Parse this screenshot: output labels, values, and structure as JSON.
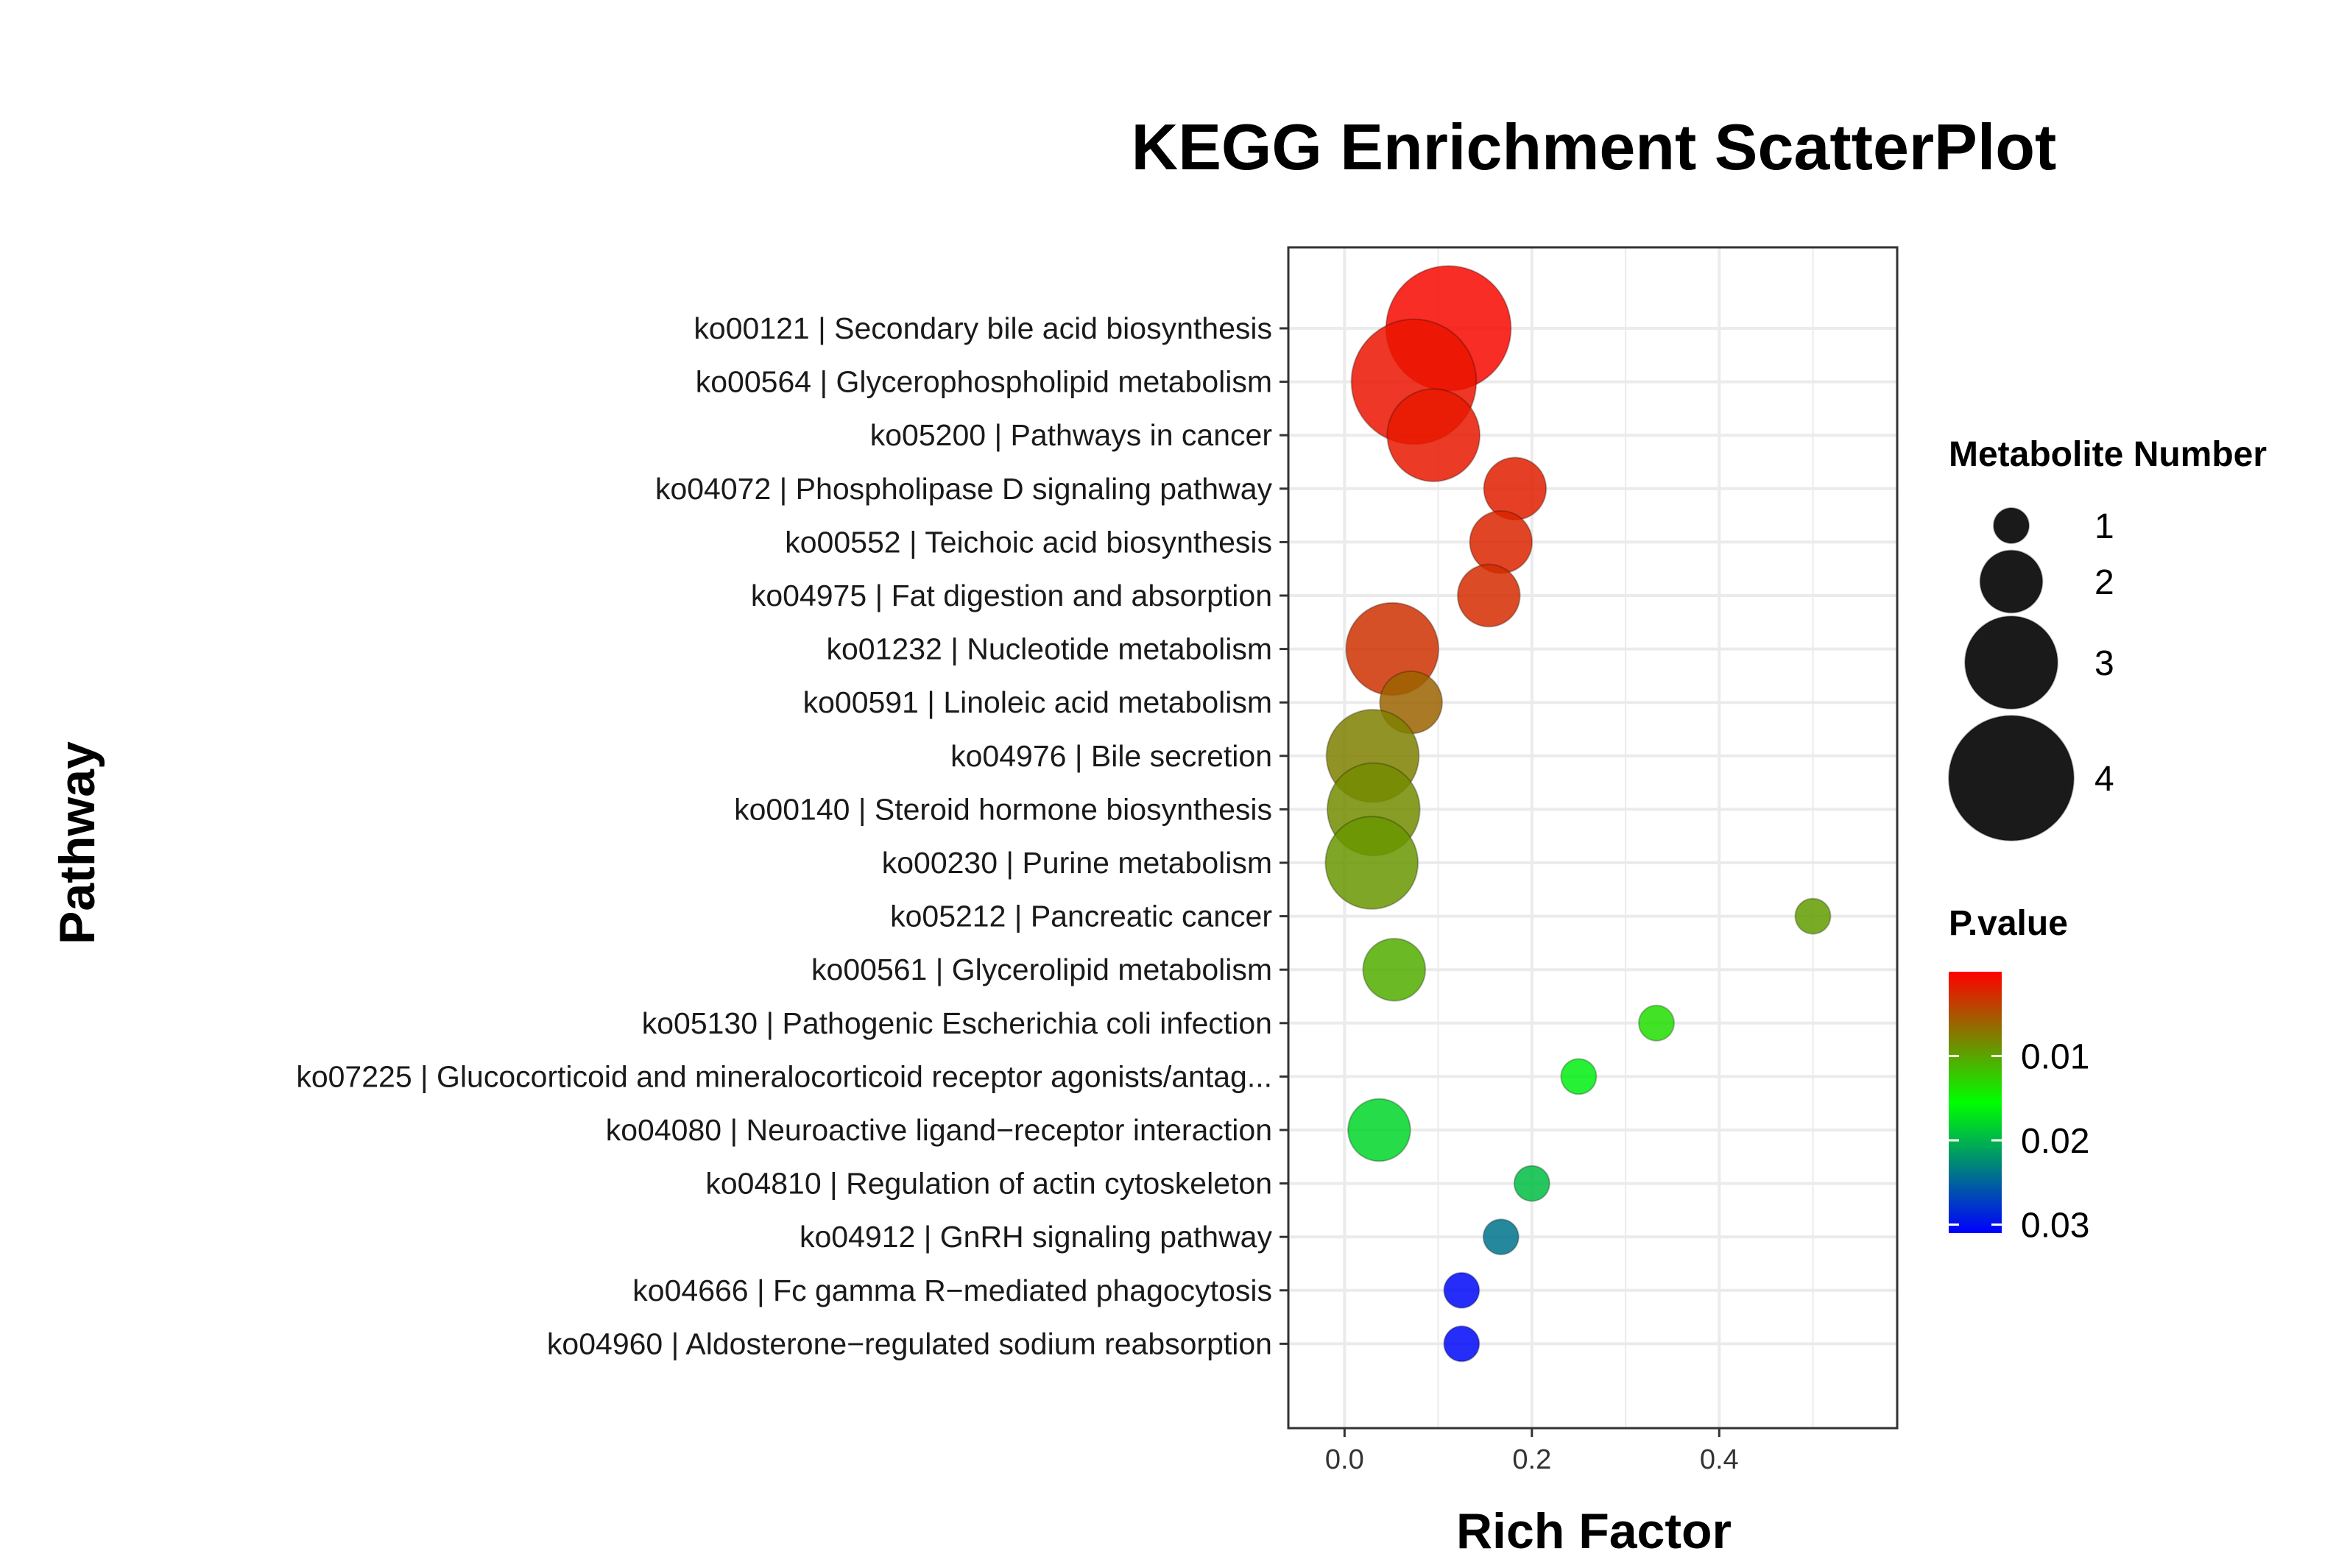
{
  "chart_data": {
    "type": "scatter",
    "title": "KEGG Enrichment ScatterPlot",
    "xlabel": "Rich Factor",
    "ylabel": "Pathway",
    "xlim": [
      -0.06,
      0.59
    ],
    "xticks": [
      0.0,
      0.2,
      0.4
    ],
    "xtick_labels": [
      "0.0",
      "0.2",
      "0.4"
    ],
    "grid": true,
    "points": [
      {
        "pathway": "ko00121 | Secondary bile acid biosynthesis",
        "rich_factor": 0.111,
        "metabolite_number": 4,
        "p_value": 0.0005
      },
      {
        "pathway": "ko00564 | Glycerophospholipid metabolism",
        "rich_factor": 0.074,
        "metabolite_number": 4,
        "p_value": 0.0012
      },
      {
        "pathway": "ko05200 | Pathways in cancer",
        "rich_factor": 0.095,
        "metabolite_number": 3,
        "p_value": 0.0014
      },
      {
        "pathway": "ko04072 | Phospholipase D signaling pathway",
        "rich_factor": 0.182,
        "metabolite_number": 2,
        "p_value": 0.0018
      },
      {
        "pathway": "ko00552 | Teichoic acid biosynthesis",
        "rich_factor": 0.167,
        "metabolite_number": 2,
        "p_value": 0.0022
      },
      {
        "pathway": "ko04975 | Fat digestion and absorption",
        "rich_factor": 0.154,
        "metabolite_number": 2,
        "p_value": 0.0026
      },
      {
        "pathway": "ko01232 | Nucleotide metabolism",
        "rich_factor": 0.051,
        "metabolite_number": 3,
        "p_value": 0.003
      },
      {
        "pathway": "ko00591 | Linoleic acid metabolism",
        "rich_factor": 0.071,
        "metabolite_number": 2,
        "p_value": 0.006
      },
      {
        "pathway": "ko04976 | Bile secretion",
        "rich_factor": 0.03,
        "metabolite_number": 3,
        "p_value": 0.0078
      },
      {
        "pathway": "ko00140 | Steroid hormone biosynthesis",
        "rich_factor": 0.031,
        "metabolite_number": 3,
        "p_value": 0.0085
      },
      {
        "pathway": "ko00230 | Purine metabolism",
        "rich_factor": 0.029,
        "metabolite_number": 3,
        "p_value": 0.0092
      },
      {
        "pathway": "ko05212 | Pancreatic cancer",
        "rich_factor": 0.5,
        "metabolite_number": 1,
        "p_value": 0.0095
      },
      {
        "pathway": "ko00561 | Glycerolipid metabolism",
        "rich_factor": 0.053,
        "metabolite_number": 2,
        "p_value": 0.0105
      },
      {
        "pathway": "ko05130 | Pathogenic Escherichia coli infection",
        "rich_factor": 0.333,
        "metabolite_number": 1,
        "p_value": 0.0135
      },
      {
        "pathway": "ko07225 | Glucocorticoid and mineralocorticoid receptor agonists/antag...",
        "rich_factor": 0.25,
        "metabolite_number": 1,
        "p_value": 0.0165
      },
      {
        "pathway": "ko04080 | Neuroactive ligand−receptor interaction",
        "rich_factor": 0.037,
        "metabolite_number": 2,
        "p_value": 0.018
      },
      {
        "pathway": "ko04810 | Regulation of actin cytoskeleton",
        "rich_factor": 0.2,
        "metabolite_number": 1,
        "p_value": 0.0195
      },
      {
        "pathway": "ko04912 | GnRH signaling pathway",
        "rich_factor": 0.167,
        "metabolite_number": 1,
        "p_value": 0.024
      },
      {
        "pathway": "ko04666 | Fc gamma R−mediated phagocytosis",
        "rich_factor": 0.125,
        "metabolite_number": 1,
        "p_value": 0.0305
      },
      {
        "pathway": "ko04960 | Aldosterone−regulated sodium reabsorption",
        "rich_factor": 0.125,
        "metabolite_number": 1,
        "p_value": 0.0305
      }
    ],
    "size_legend": {
      "title": "Metabolite Number",
      "values": [
        1,
        2,
        3,
        4
      ],
      "labels": [
        "1",
        "2",
        "3",
        "4"
      ]
    },
    "color_legend": {
      "title": "P.value",
      "range": [
        0.0,
        0.031
      ],
      "ticks": [
        0.01,
        0.02,
        0.03
      ],
      "tick_labels": [
        "0.01",
        "0.02",
        "0.03"
      ],
      "colors": {
        "low": "#ff0000",
        "mid": "#00ff00",
        "high": "#0000ff"
      }
    },
    "colors": {
      "grid": "#ebebeb",
      "panel_border": "#333333",
      "point_stroke": "#000000"
    }
  }
}
